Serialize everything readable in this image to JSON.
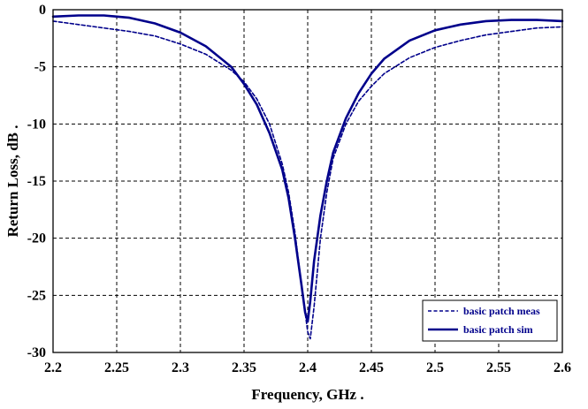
{
  "chart_data": {
    "type": "line",
    "title": "",
    "xlabel": "Frequency, GHz .",
    "ylabel": "Return Loss, dB .",
    "xlim": [
      2.2,
      2.6
    ],
    "ylim": [
      -30,
      0
    ],
    "xticks": [
      "2.2",
      "2.25",
      "2.3",
      "2.35",
      "2.4",
      "2.45",
      "2.5",
      "2.55",
      "2.6"
    ],
    "yticks": [
      "0",
      "-5",
      "-10",
      "-15",
      "-20",
      "-25",
      "-30"
    ],
    "grid": true,
    "legend_position": "bottom-right",
    "series": [
      {
        "name": "basic patch meas",
        "style": "dashed",
        "color": "#00008b",
        "x": [
          2.2,
          2.22,
          2.24,
          2.26,
          2.28,
          2.3,
          2.32,
          2.34,
          2.35,
          2.36,
          2.37,
          2.38,
          2.385,
          2.39,
          2.395,
          2.4,
          2.402,
          2.405,
          2.41,
          2.415,
          2.42,
          2.43,
          2.44,
          2.45,
          2.46,
          2.48,
          2.5,
          2.52,
          2.54,
          2.56,
          2.58,
          2.6
        ],
        "y": [
          -1.0,
          -1.3,
          -1.6,
          -1.9,
          -2.3,
          -3.0,
          -3.9,
          -5.3,
          -6.3,
          -7.8,
          -10.0,
          -13.5,
          -16.0,
          -19.5,
          -24.0,
          -28.2,
          -28.8,
          -26.0,
          -20.0,
          -16.0,
          -13.0,
          -10.0,
          -8.0,
          -6.7,
          -5.6,
          -4.2,
          -3.3,
          -2.7,
          -2.2,
          -1.9,
          -1.6,
          -1.5
        ]
      },
      {
        "name": "basic patch sim",
        "style": "solid",
        "color": "#00008b",
        "x": [
          2.2,
          2.22,
          2.24,
          2.26,
          2.28,
          2.3,
          2.32,
          2.34,
          2.35,
          2.36,
          2.37,
          2.38,
          2.385,
          2.39,
          2.395,
          2.398,
          2.4,
          2.402,
          2.405,
          2.41,
          2.415,
          2.42,
          2.43,
          2.44,
          2.45,
          2.46,
          2.48,
          2.5,
          2.52,
          2.54,
          2.56,
          2.58,
          2.6
        ],
        "y": [
          -0.6,
          -0.5,
          -0.5,
          -0.7,
          -1.2,
          -2.0,
          -3.2,
          -5.0,
          -6.5,
          -8.3,
          -10.8,
          -14.0,
          -16.5,
          -20.0,
          -24.0,
          -26.5,
          -27.3,
          -25.5,
          -22.0,
          -18.0,
          -15.0,
          -12.5,
          -9.5,
          -7.3,
          -5.6,
          -4.3,
          -2.7,
          -1.8,
          -1.3,
          -1.0,
          -0.9,
          -0.9,
          -1.0
        ]
      }
    ]
  }
}
